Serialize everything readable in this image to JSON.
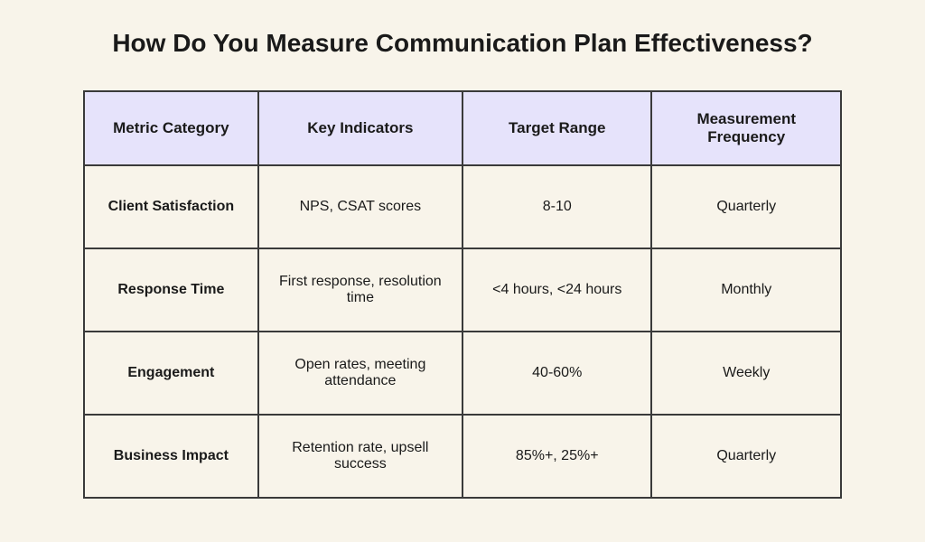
{
  "title": "How Do You Measure Communication Plan Effectiveness?",
  "table": {
    "columns": [
      "Metric Category",
      "Key Indicators",
      "Target Range",
      "Measurement Frequency"
    ],
    "rows": [
      {
        "category": "Client Satisfaction",
        "indicators": "NPS, CSAT scores",
        "target": "8-10",
        "frequency": "Quarterly"
      },
      {
        "category": "Response Time",
        "indicators": "First response, resolution time",
        "target": "<4 hours, <24 hours",
        "frequency": "Monthly"
      },
      {
        "category": "Engagement",
        "indicators": "Open rates, meeting attendance",
        "target": "40-60%",
        "frequency": "Weekly"
      },
      {
        "category": "Business Impact",
        "indicators": "Retention rate, upsell success",
        "target": "85%+, 25%+",
        "frequency": "Quarterly"
      }
    ],
    "column_widths_pct": [
      23,
      27,
      25,
      25
    ],
    "header_bg": "#e6e3fb",
    "body_bg": "#f8f4ea",
    "border_color": "#3a3a3a",
    "title_fontsize": 28,
    "header_fontsize": 17,
    "cell_fontsize": 16
  }
}
